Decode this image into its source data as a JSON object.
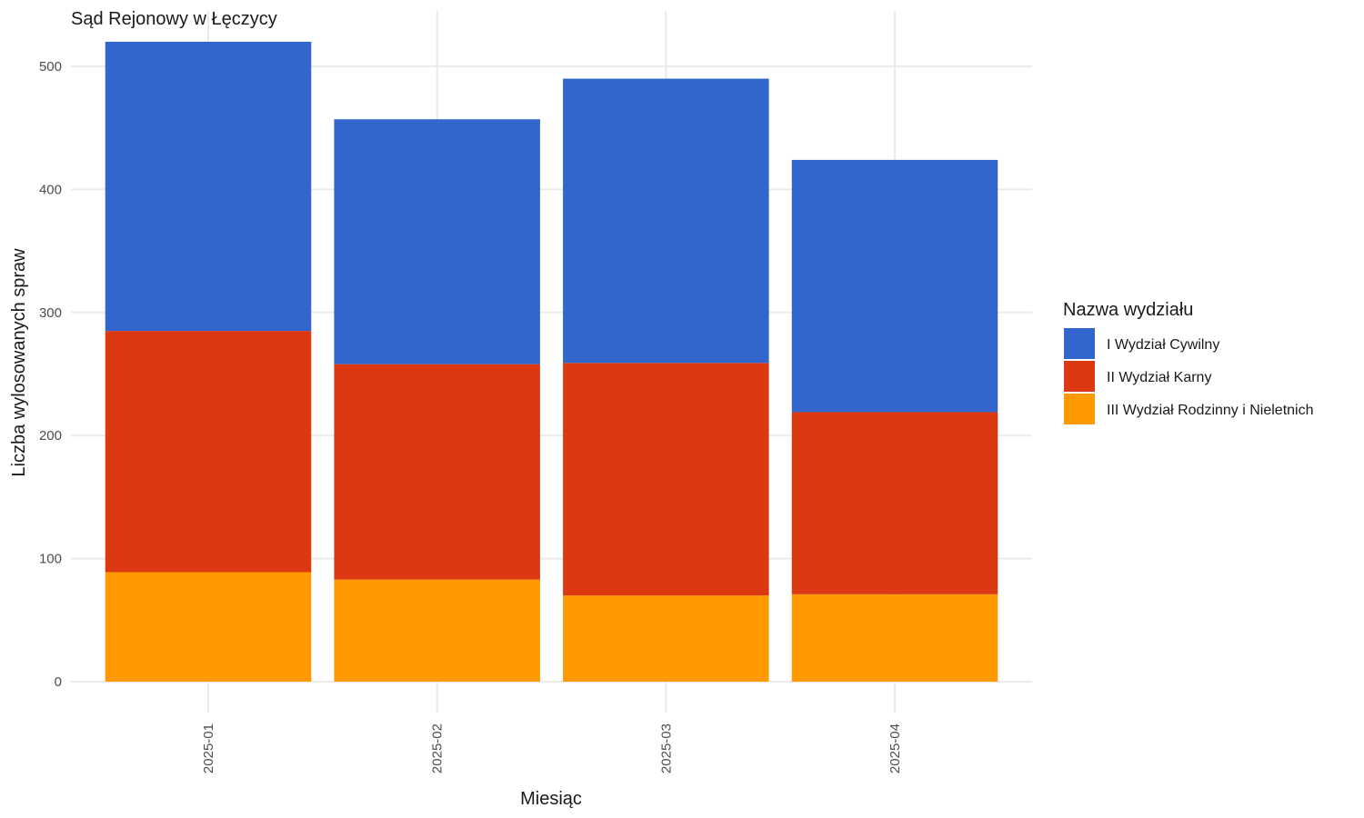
{
  "chart_data": {
    "type": "bar",
    "stacked": true,
    "title": "Sąd Rejonowy w Łęczycy",
    "xlabel": "Miesiąc",
    "ylabel": "Liczba wylosowanych spraw",
    "categories": [
      "2025-01",
      "2025-02",
      "2025-03",
      "2025-04"
    ],
    "ylim": [
      0,
      530
    ],
    "y_ticks": [
      0,
      100,
      200,
      300,
      400,
      500
    ],
    "grid": true,
    "legend": {
      "title": "Nazwa wydziału",
      "placement": "right"
    },
    "series": [
      {
        "name": "III Wydział Rodzinny i Nieletnich",
        "color": "#FF9900",
        "values": [
          89,
          83,
          70,
          71
        ]
      },
      {
        "name": "II Wydział Karny",
        "color": "#DC3912",
        "values": [
          196,
          175,
          189,
          148
        ]
      },
      {
        "name": "I Wydział Cywilny",
        "color": "#3366CC",
        "values": [
          235,
          199,
          231,
          205
        ]
      }
    ],
    "legend_order": [
      "I Wydział Cywilny",
      "II Wydział Karny",
      "III Wydział Rodzinny i Nieletnich"
    ]
  }
}
